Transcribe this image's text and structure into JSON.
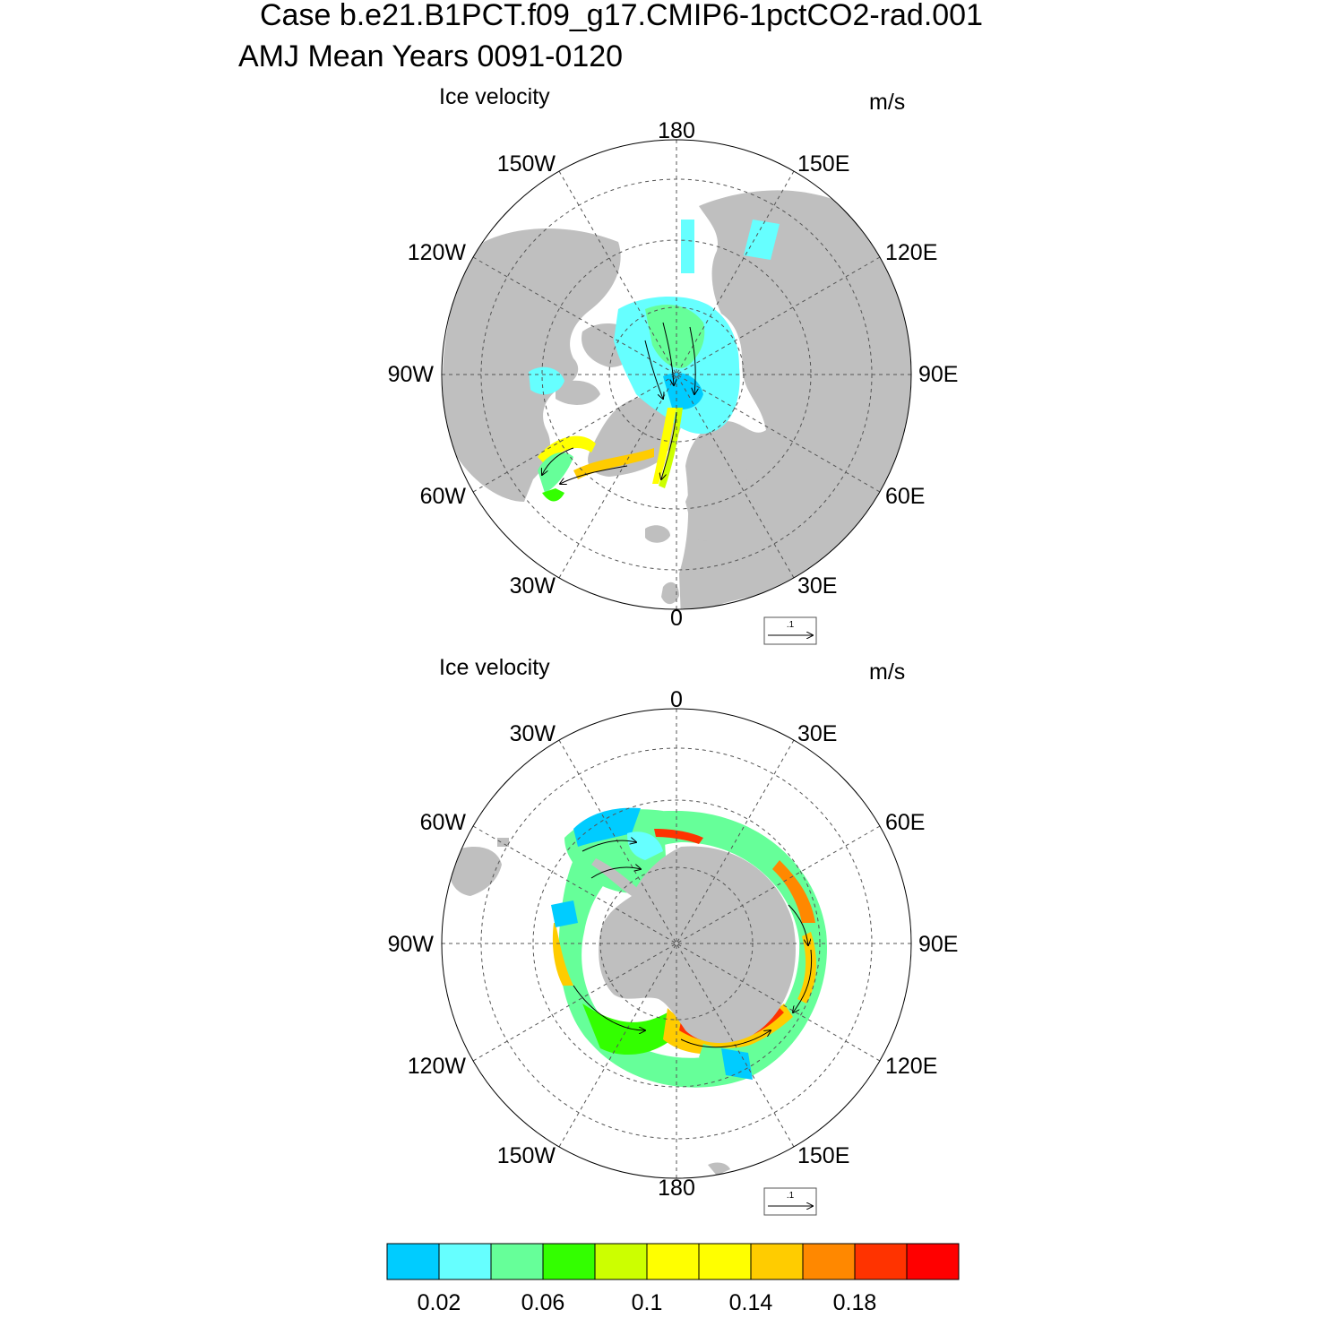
{
  "header": {
    "title_line1": "Case b.e21.B1PCT.f09_g17.CMIP6-1pctCO2-rad.001",
    "title_line2": "AMJ Mean   Years 0091-0120"
  },
  "panels": [
    {
      "id": "north",
      "left_string": "Ice velocity",
      "right_string": "m/s",
      "ref_vector_label": ".1",
      "lon_labels": [
        "180",
        "150E",
        "120E",
        "90E",
        "60E",
        "30E",
        "0",
        "30W",
        "60W",
        "90W",
        "120W",
        "150W"
      ]
    },
    {
      "id": "south",
      "left_string": "Ice velocity",
      "right_string": "m/s",
      "ref_vector_label": ".1",
      "lon_labels": [
        "0",
        "30E",
        "60E",
        "90E",
        "120E",
        "150E",
        "180",
        "150W",
        "120W",
        "90W",
        "60W",
        "30W"
      ]
    }
  ],
  "colorbar": {
    "colors": [
      "#00CCFF",
      "#66FFFF",
      "#66FF99",
      "#33FF00",
      "#CCFF00",
      "#FFFF00",
      "#FFFF00",
      "#FFCC00",
      "#FF8800",
      "#FF3300",
      "#FF0000"
    ],
    "tick_labels": [
      "0.02",
      "0.06",
      "0.1",
      "0.14",
      "0.18"
    ]
  },
  "palette": {
    "land": "#BFBFBF",
    "grid": "#555555"
  }
}
